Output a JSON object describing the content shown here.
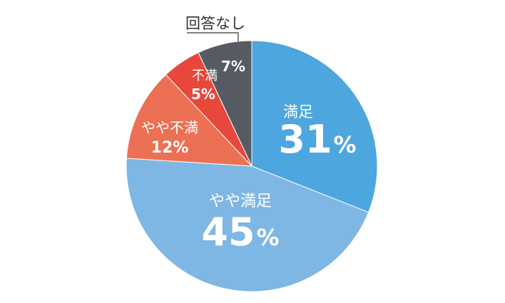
{
  "chart_data": {
    "type": "pie",
    "title": "",
    "start": "top",
    "direction": "clockwise",
    "slices": [
      {
        "label": "満足",
        "value": 31,
        "value_text": "31",
        "color": "#4da6de"
      },
      {
        "label": "やや満足",
        "value": 45,
        "value_text": "45",
        "color": "#7fb7e4"
      },
      {
        "label": "やや不満",
        "value": 12,
        "value_text": "12%",
        "color": "#ec7053"
      },
      {
        "label": "不満",
        "value": 5,
        "value_text": "5%",
        "color": "#e8473b"
      },
      {
        "label": "回答なし",
        "value": 7,
        "value_text": "7%",
        "color": "#565a62"
      }
    ],
    "percent_sign": "%"
  }
}
